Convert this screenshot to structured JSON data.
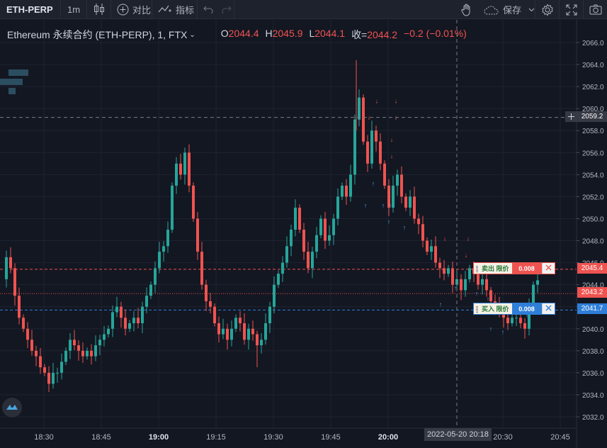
{
  "toolbar": {
    "symbol": "ETH-PERP",
    "interval": "1m",
    "compare_label": "对比",
    "indicators_label": "指标",
    "save_label": "保存"
  },
  "legend": {
    "title": "Ethereum 永续合约 (ETH-PERP), 1, FTX",
    "o_key": "O",
    "o_val": "2044.4",
    "h_key": "H",
    "h_val": "2045.9",
    "l_key": "L",
    "l_val": "2044.1",
    "c_key": "收=",
    "c_val": "2044.2",
    "change": "−0.2 (−0.01%)"
  },
  "orders": {
    "sell": {
      "label": "卖出 限价",
      "qty": "0.008",
      "price": "2045.4"
    },
    "buy": {
      "label": "买入 限价",
      "qty": "0.008",
      "price": "2041.7"
    }
  },
  "price_scale": {
    "ticks": [
      "2066.0",
      "2064.0",
      "2062.0",
      "2060.0",
      "2058.0",
      "2056.0",
      "2054.0",
      "2052.0",
      "2050.0",
      "2048.0",
      "2046.0",
      "2044.0",
      "2042.0",
      "2040.0",
      "2038.0",
      "2036.0",
      "2034.0",
      "2032.0"
    ],
    "current_price": "2043.2",
    "crosshair_price": "2059.2"
  },
  "time_scale": {
    "ticks": [
      {
        "label": "18:30",
        "bold": false
      },
      {
        "label": "18:45",
        "bold": false
      },
      {
        "label": "19:00",
        "bold": true
      },
      {
        "label": "19:15",
        "bold": false
      },
      {
        "label": "19:30",
        "bold": false
      },
      {
        "label": "19:45",
        "bold": false
      },
      {
        "label": "20:00",
        "bold": true
      },
      {
        "label": "20:30",
        "bold": false
      },
      {
        "label": "20:45",
        "bold": false
      }
    ],
    "crosshair_time": "2022-05-20   20:18"
  },
  "colors": {
    "up": "#26a69a",
    "down": "#ef5350",
    "background": "#131722",
    "grid": "#1f2330",
    "buy_line": "#2f7fd8",
    "sell_line": "#ef5350"
  }
}
